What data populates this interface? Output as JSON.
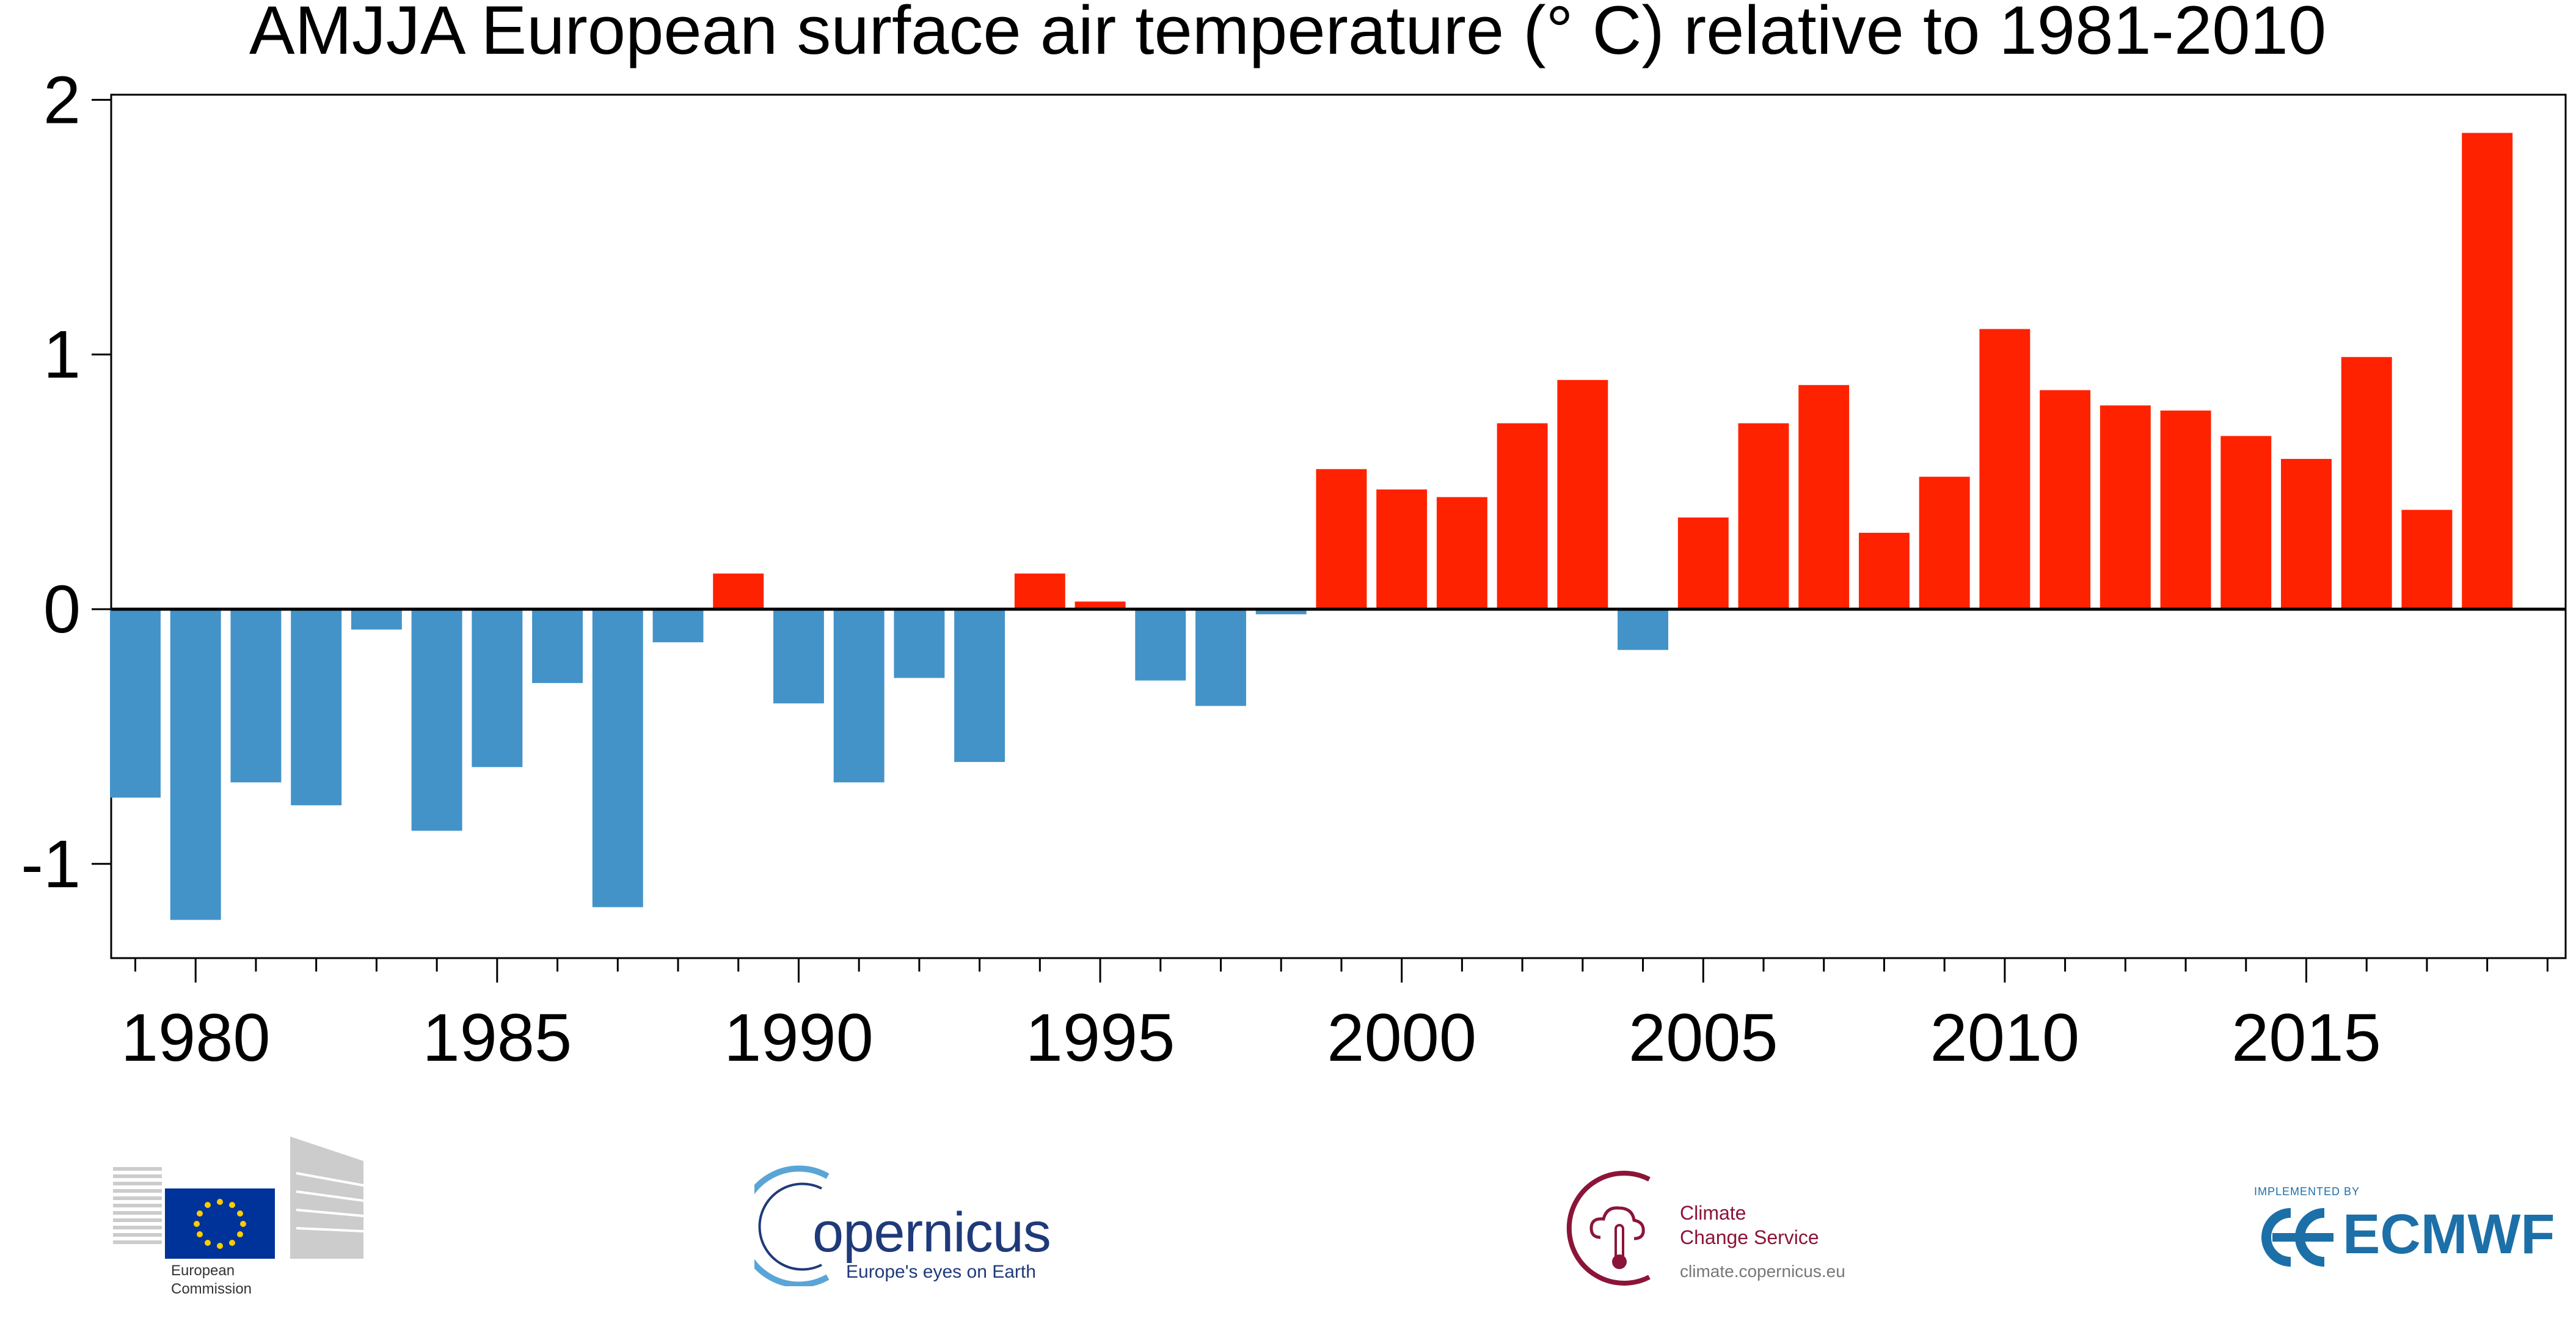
{
  "chart_data": {
    "type": "bar",
    "title": "AMJJA European surface air temperature (° C) relative to 1981-2010",
    "xlabel": "",
    "ylabel": "",
    "ylim": [
      -1.37,
      2.02
    ],
    "xlim": [
      1978.6,
      2019.3
    ],
    "yticks": [
      "-1",
      "0",
      "1",
      "2"
    ],
    "xticks": [
      "1980",
      "1985",
      "1990",
      "1995",
      "2000",
      "2005",
      "2010",
      "2015"
    ],
    "grid": false,
    "zero_line": true,
    "positive_color": "#ff2200",
    "negative_color": "#4393c9",
    "x": [
      1979,
      1980,
      1981,
      1982,
      1983,
      1984,
      1985,
      1986,
      1987,
      1988,
      1989,
      1990,
      1991,
      1992,
      1993,
      1994,
      1995,
      1996,
      1997,
      1998,
      1999,
      2000,
      2001,
      2002,
      2003,
      2004,
      2005,
      2006,
      2007,
      2008,
      2009,
      2010,
      2011,
      2012,
      2013,
      2014,
      2015,
      2016,
      2017,
      2018
    ],
    "values": [
      -0.74,
      -1.22,
      -0.68,
      -0.77,
      -0.08,
      -0.87,
      -0.62,
      -0.29,
      -1.17,
      -0.13,
      0.14,
      -0.37,
      -0.68,
      -0.27,
      -0.6,
      0.14,
      0.03,
      -0.28,
      -0.38,
      -0.02,
      0.55,
      0.47,
      0.44,
      0.73,
      0.9,
      -0.16,
      0.36,
      0.73,
      0.88,
      0.3,
      0.52,
      1.1,
      0.86,
      0.8,
      0.78,
      0.68,
      0.59,
      0.99,
      0.39,
      1.87
    ]
  },
  "logos": {
    "european_commission": {
      "line1": "European",
      "line2": "Commission"
    },
    "copernicus": {
      "name": "opernicus",
      "tagline": "Europe's eyes on Earth"
    },
    "c3s": {
      "line1": "Climate",
      "line2": "Change Service",
      "url": "climate.copernicus.eu"
    },
    "ecmwf": {
      "implemented": "IMPLEMENTED BY",
      "name": "ECMWF"
    }
  }
}
